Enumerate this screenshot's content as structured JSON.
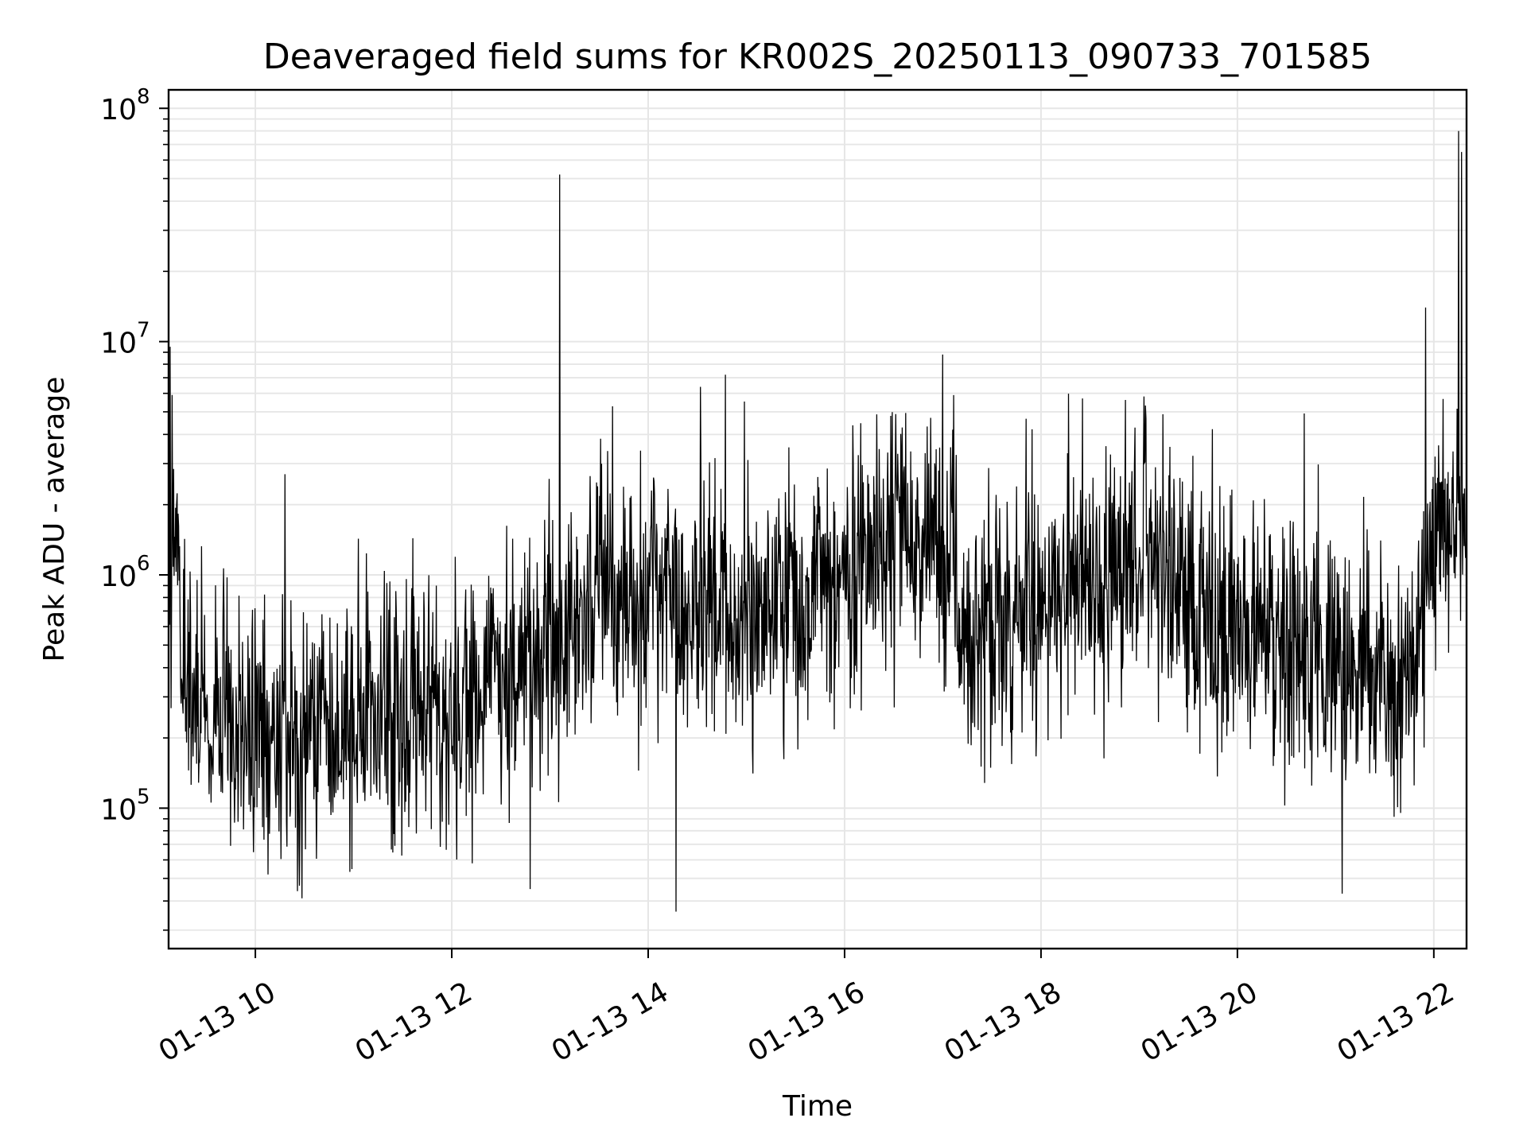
{
  "chart_data": {
    "type": "line",
    "title": "Deaveraged field sums for KR002S_20250113_090733_701585",
    "xlabel": "Time",
    "ylabel": "Peak ADU - average",
    "y_scale": "log",
    "ylim": [
      25000,
      120000000
    ],
    "xlim": [
      "2025-01-13 09:07",
      "2025-01-13 22:20"
    ],
    "x_ticks": [
      {
        "value": "2025-01-13 10:00",
        "label": "01-13 10"
      },
      {
        "value": "2025-01-13 12:00",
        "label": "01-13 12"
      },
      {
        "value": "2025-01-13 14:00",
        "label": "01-13 14"
      },
      {
        "value": "2025-01-13 16:00",
        "label": "01-13 16"
      },
      {
        "value": "2025-01-13 18:00",
        "label": "01-13 18"
      },
      {
        "value": "2025-01-13 20:00",
        "label": "01-13 20"
      },
      {
        "value": "2025-01-13 22:00",
        "label": "01-13 22"
      }
    ],
    "y_ticks": [
      {
        "value": 100000,
        "base": "10",
        "exp": "5"
      },
      {
        "value": 1000000,
        "base": "10",
        "exp": "6"
      },
      {
        "value": 10000000,
        "base": "10",
        "exp": "7"
      },
      {
        "value": 100000000,
        "base": "10",
        "exp": "8"
      }
    ],
    "grid": true,
    "line_color": "#000000",
    "grid_color": "#e6e6e6",
    "series_profile": [
      {
        "x": "2025-01-13 09:07",
        "y": 1200000
      },
      {
        "x": "2025-01-13 09:12",
        "y": 1300000
      },
      {
        "x": "2025-01-13 09:20",
        "y": 300000
      },
      {
        "x": "2025-01-13 09:40",
        "y": 250000
      },
      {
        "x": "2025-01-13 10:00",
        "y": 200000
      },
      {
        "x": "2025-01-13 10:30",
        "y": 220000
      },
      {
        "x": "2025-01-13 11:00",
        "y": 230000
      },
      {
        "x": "2025-01-13 11:30",
        "y": 240000
      },
      {
        "x": "2025-01-13 12:00",
        "y": 280000
      },
      {
        "x": "2025-01-13 12:30",
        "y": 380000
      },
      {
        "x": "2025-01-13 13:00",
        "y": 500000
      },
      {
        "x": "2025-01-13 13:30",
        "y": 800000
      },
      {
        "x": "2025-01-13 14:00",
        "y": 700000
      },
      {
        "x": "2025-01-13 14:30",
        "y": 800000
      },
      {
        "x": "2025-01-13 15:00",
        "y": 700000
      },
      {
        "x": "2025-01-13 15:30",
        "y": 750000
      },
      {
        "x": "2025-01-13 16:00",
        "y": 900000
      },
      {
        "x": "2025-01-13 16:30",
        "y": 1600000
      },
      {
        "x": "2025-01-13 17:00",
        "y": 1300000
      },
      {
        "x": "2025-01-13 17:20",
        "y": 500000
      },
      {
        "x": "2025-01-13 17:40",
        "y": 600000
      },
      {
        "x": "2025-01-13 18:00",
        "y": 800000
      },
      {
        "x": "2025-01-13 18:15",
        "y": 1100000
      },
      {
        "x": "2025-01-13 18:40",
        "y": 900000
      },
      {
        "x": "2025-01-13 19:00",
        "y": 1300000
      },
      {
        "x": "2025-01-13 19:20",
        "y": 1100000
      },
      {
        "x": "2025-01-13 19:40",
        "y": 600000
      },
      {
        "x": "2025-01-13 20:00",
        "y": 550000
      },
      {
        "x": "2025-01-13 20:30",
        "y": 500000
      },
      {
        "x": "2025-01-13 21:00",
        "y": 350000
      },
      {
        "x": "2025-01-13 21:30",
        "y": 350000
      },
      {
        "x": "2025-01-13 21:50",
        "y": 450000
      },
      {
        "x": "2025-01-13 22:00",
        "y": 1200000
      },
      {
        "x": "2025-01-13 22:10",
        "y": 1500000
      },
      {
        "x": "2025-01-13 22:20",
        "y": 1800000
      }
    ],
    "spikes": [
      {
        "x": "2025-01-13 09:08",
        "y": 9500000
      },
      {
        "x": "2025-01-13 10:18",
        "y": 2700000
      },
      {
        "x": "2025-01-13 12:48",
        "y": 45000
      },
      {
        "x": "2025-01-13 13:06",
        "y": 52000000
      },
      {
        "x": "2025-01-13 14:17",
        "y": 36000
      },
      {
        "x": "2025-01-13 14:32",
        "y": 6400000
      },
      {
        "x": "2025-01-13 17:00",
        "y": 8800000
      },
      {
        "x": "2025-01-13 21:04",
        "y": 43000
      },
      {
        "x": "2025-01-13 21:55",
        "y": 14000000
      },
      {
        "x": "2025-01-13 22:15",
        "y": 80000000
      },
      {
        "x": "2025-01-13 22:17",
        "y": 65000000
      }
    ]
  }
}
